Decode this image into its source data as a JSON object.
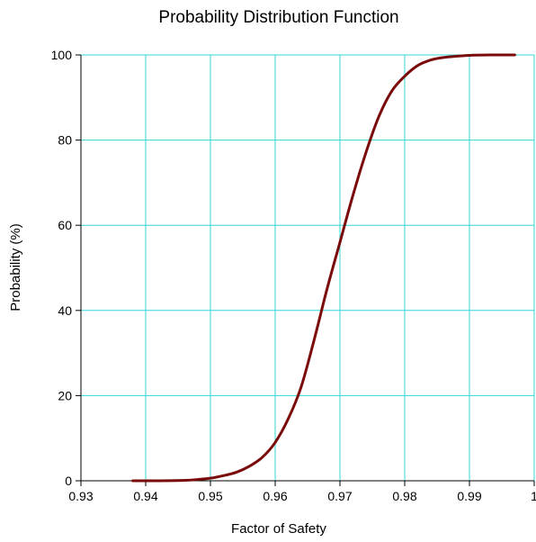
{
  "chart_data": {
    "type": "line",
    "title": "Probability Distribution Function",
    "xlabel": "Factor of Safety",
    "ylabel": "Probability (%)",
    "xlim": [
      0.93,
      1.0
    ],
    "ylim": [
      0,
      100
    ],
    "x_ticks": [
      "0.93",
      "0.94",
      "0.95",
      "0.96",
      "0.97",
      "0.98",
      "0.99",
      "1"
    ],
    "y_ticks": [
      "0",
      "20",
      "40",
      "60",
      "80",
      "100"
    ],
    "grid": true,
    "colors": {
      "grid": "#33d6d6",
      "line": "#7a0a0a",
      "axis": "#000000"
    },
    "series": [
      {
        "x": [
          0.938,
          0.942,
          0.946,
          0.948,
          0.95,
          0.952,
          0.954,
          0.956,
          0.958,
          0.96,
          0.962,
          0.964,
          0.966,
          0.968,
          0.97,
          0.972,
          0.974,
          0.976,
          0.978,
          0.98,
          0.982,
          0.984,
          0.986,
          0.988,
          0.99,
          0.993,
          0.997
        ],
        "y": [
          0,
          0,
          0.1,
          0.3,
          0.6,
          1.2,
          2.0,
          3.4,
          5.5,
          9.0,
          14.5,
          22.0,
          33.0,
          45.0,
          56.0,
          67.0,
          77.0,
          85.5,
          91.5,
          95.0,
          97.5,
          98.8,
          99.4,
          99.7,
          99.9,
          100,
          100
        ]
      }
    ]
  }
}
